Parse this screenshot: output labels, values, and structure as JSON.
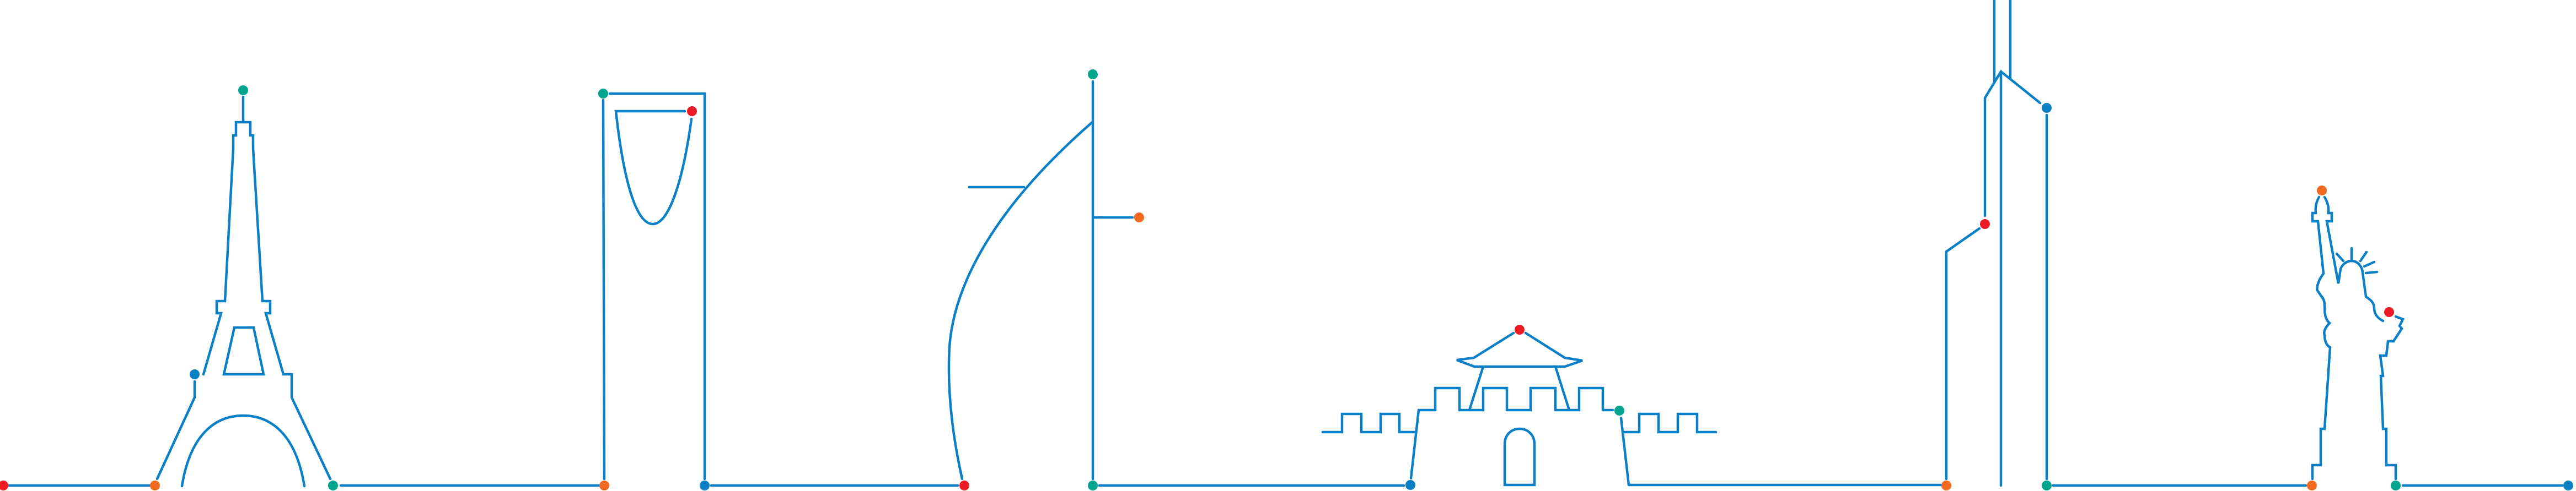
{
  "colors": {
    "line": "#0b80c6",
    "dot_red": "#ed1c24",
    "dot_orange": "#f26a21",
    "dot_teal": "#00a58e",
    "dot_blue": "#0a7fc4",
    "background": "#ffffff"
  },
  "landmarks": [
    "eiffel-tower",
    "kingdom-centre-tower",
    "burj-al-arab",
    "chinese-gate-pavilion",
    "burj-khalifa",
    "statue-of-liberty"
  ]
}
